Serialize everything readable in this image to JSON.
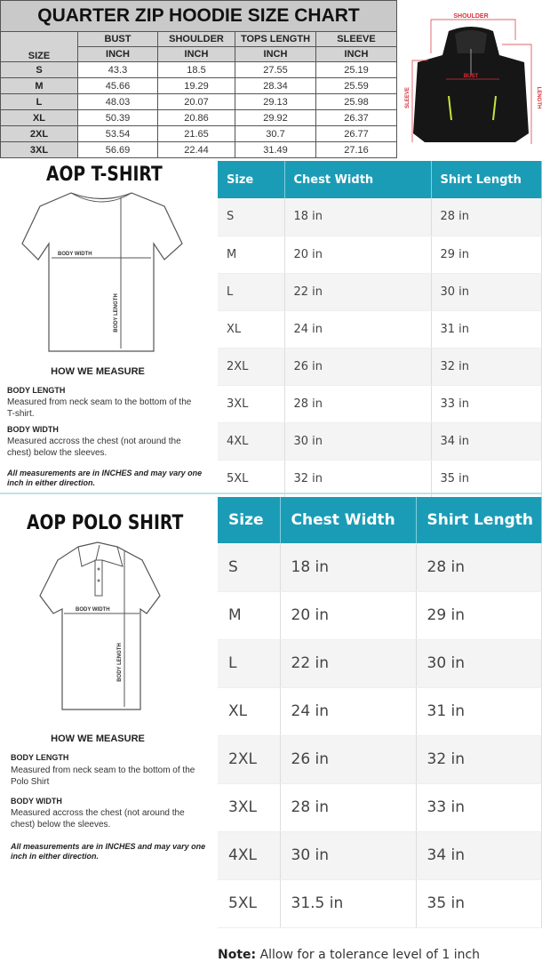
{
  "hoodie": {
    "title": "QUARTER ZIP HOODIE SIZE CHART",
    "size_label": "SIZE",
    "columns": [
      "BUST",
      "SHOULDER",
      "TOPS LENGTH",
      "SLEEVE"
    ],
    "unit": "INCH",
    "rows": [
      [
        "S",
        "43.3",
        "18.5",
        "27.55",
        "25.19"
      ],
      [
        "M",
        "45.66",
        "19.29",
        "28.34",
        "25.59"
      ],
      [
        "L",
        "48.03",
        "20.07",
        "29.13",
        "25.98"
      ],
      [
        "XL",
        "50.39",
        "20.86",
        "29.92",
        "26.37"
      ],
      [
        "2XL",
        "53.54",
        "21.65",
        "30.7",
        "26.77"
      ],
      [
        "3XL",
        "56.69",
        "22.44",
        "31.49",
        "27.16"
      ]
    ],
    "diagram_labels": {
      "shoulder": "SHOULDER",
      "bust": "BUST",
      "sleeve": "SLEEVE",
      "length": "LENGTH"
    }
  },
  "tshirt": {
    "title": "AOP T-SHIRT",
    "diagram_labels": {
      "width": "BODY WIDTH",
      "length": "BODY LENGTH"
    },
    "how": "HOW WE MEASURE",
    "length_label": "BODY LENGTH",
    "length_desc": "Measured from neck seam to the bottom of the T-shirt.",
    "width_label": "BODY WIDTH",
    "width_desc": "Measured accross the chest (not around the chest) below the sleeves.",
    "note": "All measurements are in INCHES and may vary one inch in either direction.",
    "headers": [
      "Size",
      "Chest Width",
      "Shirt Length"
    ],
    "rows": [
      [
        "S",
        "18 in",
        "28 in"
      ],
      [
        "M",
        "20 in",
        "29 in"
      ],
      [
        "L",
        "22 in",
        "30 in"
      ],
      [
        "XL",
        "24 in",
        "31 in"
      ],
      [
        "2XL",
        "26 in",
        "32 in"
      ],
      [
        "3XL",
        "28 in",
        "33 in"
      ],
      [
        "4XL",
        "30 in",
        "34 in"
      ],
      [
        "5XL",
        "32 in",
        "35 in"
      ]
    ]
  },
  "polo": {
    "title": "AOP POLO SHIRT",
    "diagram_labels": {
      "width": "BODY WIDTH",
      "length": "BODY LENGTH"
    },
    "how": "HOW WE MEASURE",
    "length_label": "BODY LENGTH",
    "length_desc": "Measured from neck seam to the bottom of the Polo Shirt",
    "width_label": "BODY WIDTH",
    "width_desc": "Measured accross the chest (not around the chest) below the sleeves.",
    "note": "All measurements are in INCHES and may vary one inch in either direction.",
    "headers": [
      "Size",
      "Chest Width",
      "Shirt Length"
    ],
    "rows": [
      [
        "S",
        "18 in",
        "28 in"
      ],
      [
        "M",
        "20 in",
        "29 in"
      ],
      [
        "L",
        "22 in",
        "30 in"
      ],
      [
        "XL",
        "24 in",
        "31 in"
      ],
      [
        "2XL",
        "26 in",
        "32 in"
      ],
      [
        "3XL",
        "28 in",
        "33 in"
      ],
      [
        "4XL",
        "30 in",
        "34 in"
      ],
      [
        "5XL",
        "31.5 in",
        "35 in"
      ]
    ]
  },
  "footer": {
    "note_label": "Note:",
    "note_text": " Allow for a tolerance level of 1 inch"
  },
  "colors": {
    "header_teal": "#1b9cb6",
    "grey_header": "#d4d4d4",
    "measure_red": "#d8313a"
  }
}
